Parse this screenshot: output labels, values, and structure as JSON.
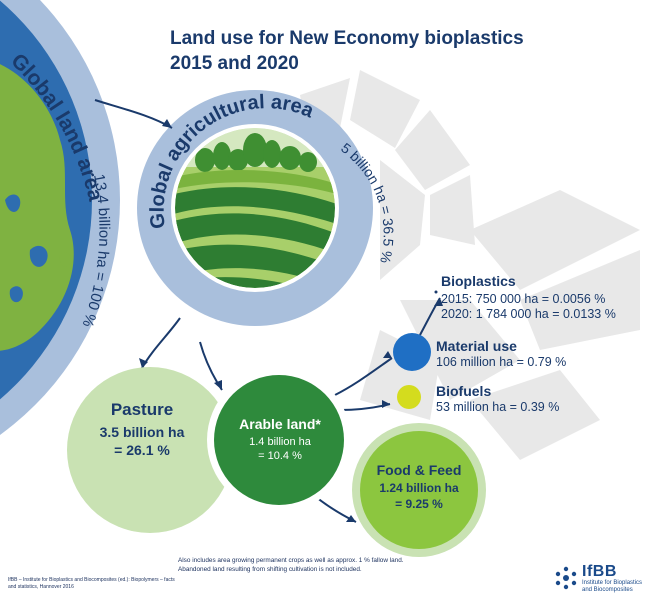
{
  "title": {
    "line1": "Land use for New Economy bioplastics",
    "line2": "2015 and 2020"
  },
  "globe": {
    "name": "Global land area",
    "value": "13.4 billion ha = 100 %"
  },
  "agri": {
    "name": "Global agricultural area",
    "value": "5 billion ha = 36.5 %"
  },
  "pasture": {
    "name": "Pasture",
    "value1": "3.5 billion ha",
    "value2": "= 26.1 %"
  },
  "arable": {
    "name": "Arable land*",
    "value1": "1.4 billion ha",
    "value2": "= 10.4 %"
  },
  "food": {
    "name": "Food & Feed",
    "value1": "1.24 billion ha",
    "value2": "= 9.25 %"
  },
  "bioplastics": {
    "name": "Bioplastics",
    "line1": "2015: 750 000 ha = 0.0056 %",
    "line2": "2020: 1 784 000 ha = 0.0133 %"
  },
  "material": {
    "name": "Material use",
    "value": "106 million ha = 0.79 %"
  },
  "biofuels": {
    "name": "Biofuels",
    "value": "53 million ha = 0.39 %"
  },
  "footnote": "Also includes area growing permanent crops as well as approx. 1 % fallow land. Abandoned land resulting from shifting cultivation is not included.",
  "source": "IfBB – Institute for Bioplastics and Biocomposites (ed.): Biopolymers – facts and statistics, Hannover 2016",
  "logo": {
    "name": "IfBB",
    "sub1": "Institute for Bioplastics",
    "sub2": "and Biocomposites"
  },
  "colors": {
    "navy": "#1a3a6b",
    "ocean": "#2e6db0",
    "ring": "#a9bfdc",
    "land_green": "#7fb241",
    "field_dark": "#1f6f2c",
    "pasture": "#c9e2b3",
    "arable": "#2e8a3c",
    "food": "#8cc63f",
    "material": "#1f6fc4",
    "biofuels": "#d4dc1e",
    "watermark": "#e6e6e6"
  }
}
